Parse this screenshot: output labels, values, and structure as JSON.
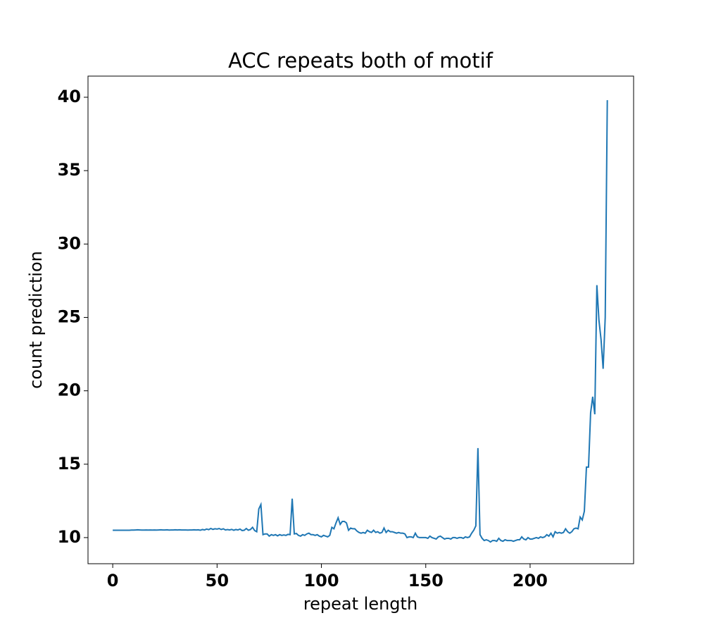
{
  "chart_data": {
    "type": "line",
    "title": "ACC repeats both of motif",
    "x_label": "repeat length",
    "y_label": "count prediction",
    "x": [
      0,
      1,
      2,
      3,
      4,
      5,
      6,
      7,
      8,
      9,
      10,
      11,
      12,
      13,
      14,
      15,
      16,
      17,
      18,
      19,
      20,
      21,
      22,
      23,
      24,
      25,
      26,
      27,
      28,
      29,
      30,
      31,
      32,
      33,
      34,
      35,
      36,
      37,
      38,
      39,
      40,
      41,
      42,
      43,
      44,
      45,
      46,
      47,
      48,
      49,
      50,
      51,
      52,
      53,
      54,
      55,
      56,
      57,
      58,
      59,
      60,
      61,
      62,
      63,
      64,
      65,
      66,
      67,
      68,
      69,
      70,
      71,
      72,
      73,
      74,
      75,
      76,
      77,
      78,
      79,
      80,
      81,
      82,
      83,
      84,
      85,
      86,
      87,
      88,
      89,
      90,
      91,
      92,
      93,
      94,
      95,
      96,
      97,
      98,
      99,
      100,
      101,
      102,
      103,
      104,
      105,
      106,
      107,
      108,
      109,
      110,
      111,
      112,
      113,
      114,
      115,
      116,
      117,
      118,
      119,
      120,
      121,
      122,
      123,
      124,
      125,
      126,
      127,
      128,
      129,
      130,
      131,
      132,
      133,
      134,
      135,
      136,
      137,
      138,
      139,
      140,
      141,
      142,
      143,
      144,
      145,
      146,
      147,
      148,
      149,
      150,
      151,
      152,
      153,
      154,
      155,
      156,
      157,
      158,
      159,
      160,
      161,
      162,
      163,
      164,
      165,
      166,
      167,
      168,
      169,
      170,
      171,
      172,
      173,
      174,
      175,
      176,
      177,
      178,
      179,
      180,
      181,
      182,
      183,
      184,
      185,
      186,
      187,
      188,
      189,
      190,
      191,
      192,
      193,
      194,
      195,
      196,
      197,
      198,
      199,
      200,
      201,
      202,
      203,
      204,
      205,
      206,
      207,
      208,
      209,
      210,
      211,
      212,
      213,
      214,
      215,
      216,
      217,
      218,
      219,
      220,
      221,
      222,
      223,
      224,
      225,
      226,
      227,
      228,
      229,
      230,
      231,
      232,
      233,
      234,
      235,
      236,
      237
    ],
    "series": [
      {
        "color": "#1f77b4",
        "values": [
          10.5,
          10.5,
          10.5,
          10.5,
          10.5,
          10.5,
          10.5,
          10.5,
          10.5,
          10.51,
          10.51,
          10.52,
          10.53,
          10.52,
          10.51,
          10.51,
          10.52,
          10.51,
          10.52,
          10.51,
          10.52,
          10.51,
          10.52,
          10.53,
          10.52,
          10.52,
          10.53,
          10.51,
          10.52,
          10.52,
          10.53,
          10.52,
          10.53,
          10.52,
          10.52,
          10.52,
          10.51,
          10.52,
          10.52,
          10.53,
          10.52,
          10.53,
          10.5,
          10.55,
          10.52,
          10.58,
          10.54,
          10.62,
          10.56,
          10.6,
          10.58,
          10.62,
          10.55,
          10.6,
          10.52,
          10.55,
          10.52,
          10.56,
          10.5,
          10.55,
          10.52,
          10.58,
          10.48,
          10.5,
          10.62,
          10.5,
          10.55,
          10.7,
          10.48,
          10.4,
          11.95,
          12.25,
          10.2,
          10.25,
          10.25,
          10.1,
          10.2,
          10.15,
          10.2,
          10.12,
          10.2,
          10.15,
          10.18,
          10.15,
          10.22,
          10.2,
          12.65,
          10.25,
          10.28,
          10.15,
          10.1,
          10.2,
          10.15,
          10.25,
          10.3,
          10.2,
          10.2,
          10.15,
          10.2,
          10.1,
          10.05,
          10.15,
          10.1,
          10.05,
          10.15,
          10.7,
          10.6,
          11.0,
          11.35,
          10.9,
          11.1,
          11.1,
          11.0,
          10.5,
          10.65,
          10.6,
          10.6,
          10.45,
          10.35,
          10.3,
          10.35,
          10.3,
          10.5,
          10.4,
          10.35,
          10.5,
          10.35,
          10.4,
          10.3,
          10.35,
          10.65,
          10.35,
          10.5,
          10.4,
          10.4,
          10.35,
          10.3,
          10.35,
          10.3,
          10.3,
          10.25,
          10.0,
          10.05,
          10.05,
          10.0,
          10.3,
          10.05,
          10.0,
          10.0,
          10.0,
          10.0,
          9.95,
          10.1,
          10.0,
          9.95,
          9.9,
          10.05,
          10.1,
          10.0,
          9.9,
          9.95,
          9.95,
          9.9,
          10.0,
          10.0,
          9.95,
          10.0,
          10.0,
          9.95,
          10.05,
          10.0,
          10.05,
          10.3,
          10.5,
          10.8,
          16.1,
          10.2,
          9.95,
          9.8,
          9.85,
          9.8,
          9.7,
          9.8,
          9.8,
          9.75,
          9.95,
          9.8,
          9.75,
          9.85,
          9.8,
          9.8,
          9.8,
          9.75,
          9.8,
          9.85,
          9.85,
          10.05,
          9.9,
          9.85,
          10.0,
          9.9,
          9.9,
          9.95,
          10.0,
          9.95,
          10.05,
          10.0,
          10.05,
          10.2,
          10.1,
          10.3,
          10.05,
          10.4,
          10.3,
          10.35,
          10.3,
          10.35,
          10.6,
          10.4,
          10.3,
          10.4,
          10.6,
          10.65,
          10.6,
          11.4,
          11.2,
          11.8,
          14.8,
          14.8,
          18.5,
          19.6,
          18.4,
          27.2,
          24.8,
          23.5,
          21.5,
          25.0,
          39.8
        ]
      }
    ],
    "xlim": [
      -11.85,
      249.6
    ],
    "ylim": [
      8.22,
      41.44
    ],
    "xticks": [
      0,
      50,
      100,
      150,
      200
    ],
    "yticks": [
      10,
      15,
      20,
      25,
      30,
      35,
      40
    ]
  }
}
